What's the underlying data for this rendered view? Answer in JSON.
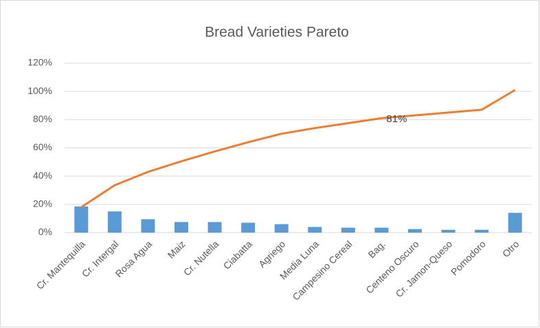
{
  "chart_data": {
    "type": "pareto",
    "title": "Bread Varieties Pareto",
    "categories": [
      "Cr. Mantequilla",
      "Cr. Intergal",
      "Rosa Agua",
      "Maiz",
      "Cr. Nutella",
      "Ciabatta",
      "Agriego",
      "Media Luna",
      "Campesino Cereal",
      "Bag.",
      "Centeno Oscuro",
      "Cr. Jamon-Queso",
      "Pomodoro",
      "Otro"
    ],
    "series": [
      {
        "type": "bar",
        "color": "#5b9bd5",
        "values": [
          18.5,
          15,
          9.5,
          7.5,
          7.5,
          7,
          6,
          4,
          3.5,
          3.5,
          2.5,
          2,
          2,
          14
        ]
      },
      {
        "type": "line",
        "color": "#ed7d31",
        "values": [
          18,
          33.5,
          43,
          50.5,
          57.5,
          64,
          70,
          74,
          77.5,
          81,
          83,
          85,
          87,
          101
        ],
        "value_labels": [
          null,
          null,
          null,
          null,
          null,
          null,
          null,
          null,
          null,
          "81%",
          null,
          null,
          null,
          null
        ]
      }
    ],
    "ylim": [
      0,
      120
    ],
    "yticks": [
      {
        "value": 0,
        "label": "0%"
      },
      {
        "value": 20,
        "label": "20%"
      },
      {
        "value": 40,
        "label": "40%"
      },
      {
        "value": 60,
        "label": "60%"
      },
      {
        "value": 80,
        "label": "80%"
      },
      {
        "value": 100,
        "label": "100%"
      },
      {
        "value": 120,
        "label": "120%"
      }
    ],
    "grid": true
  }
}
